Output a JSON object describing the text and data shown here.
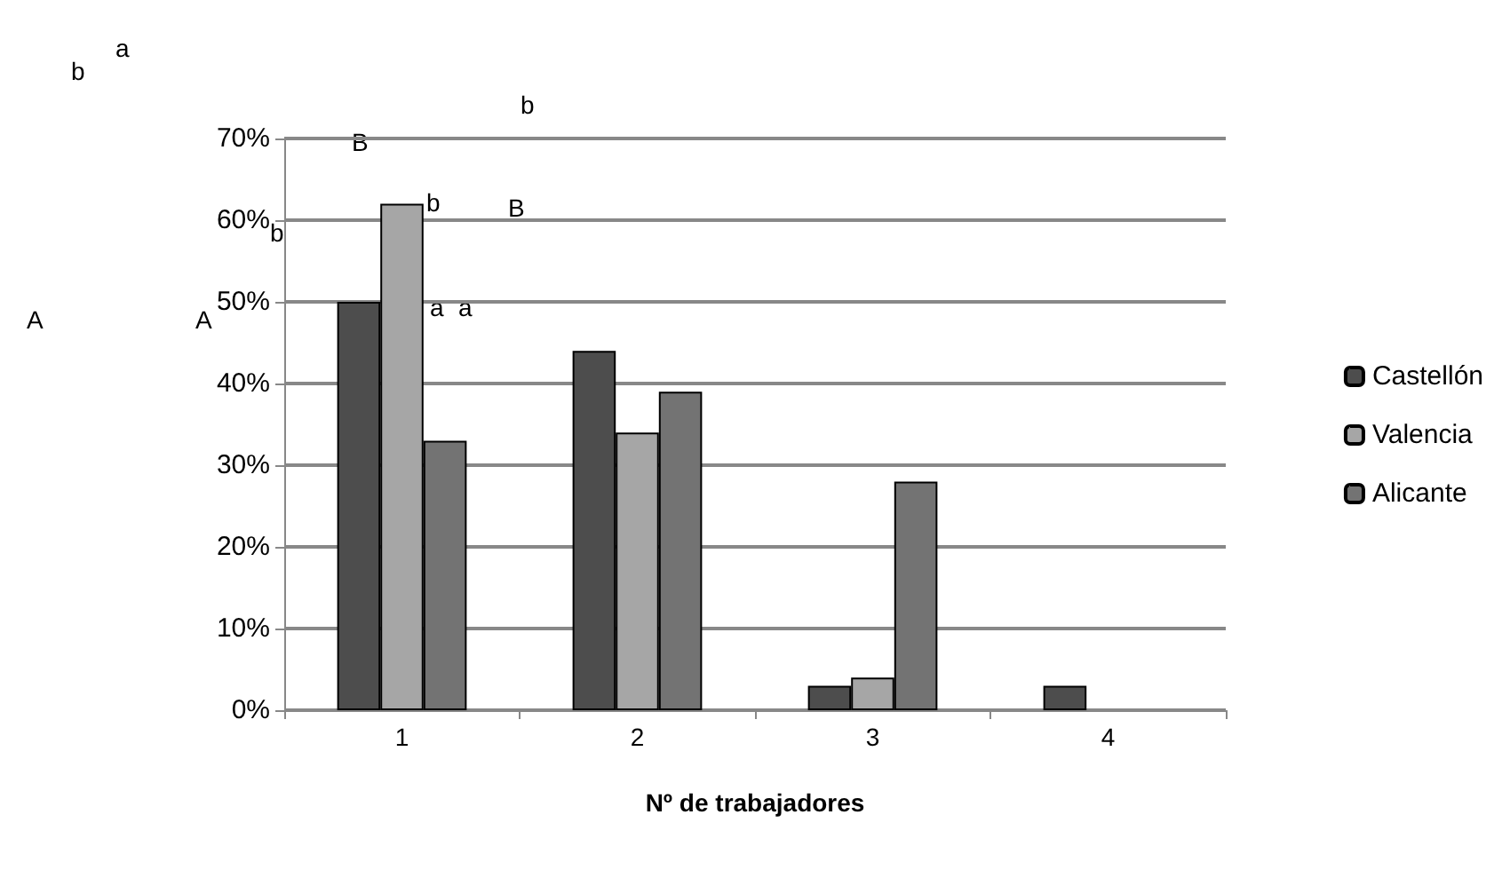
{
  "chart_data": {
    "type": "bar",
    "xlabel": "Nº de trabajadores",
    "categories": [
      "1",
      "2",
      "3",
      "4"
    ],
    "series": [
      {
        "name": "Castellón",
        "color": "#4d4d4d",
        "values": [
          50,
          44,
          3,
          3
        ]
      },
      {
        "name": "Valencia",
        "color": "#a6a6a6",
        "values": [
          62,
          34,
          4,
          0
        ]
      },
      {
        "name": "Alicante",
        "color": "#737373",
        "values": [
          33,
          39,
          28,
          0
        ]
      }
    ],
    "ylim": [
      0,
      70
    ],
    "yticks": [
      {
        "value": 0,
        "label": "0%"
      },
      {
        "value": 10,
        "label": "10%"
      },
      {
        "value": 20,
        "label": "20%"
      },
      {
        "value": 30,
        "label": "30%"
      },
      {
        "value": 40,
        "label": "40%"
      },
      {
        "value": 50,
        "label": "50%"
      },
      {
        "value": 60,
        "label": "60%"
      },
      {
        "value": 70,
        "label": "70%"
      }
    ],
    "grid": "y",
    "legend": "right",
    "annotations": [
      "b",
      "a",
      "B",
      "b",
      "b",
      "b",
      "B",
      "A",
      "A",
      "a",
      "a"
    ]
  }
}
